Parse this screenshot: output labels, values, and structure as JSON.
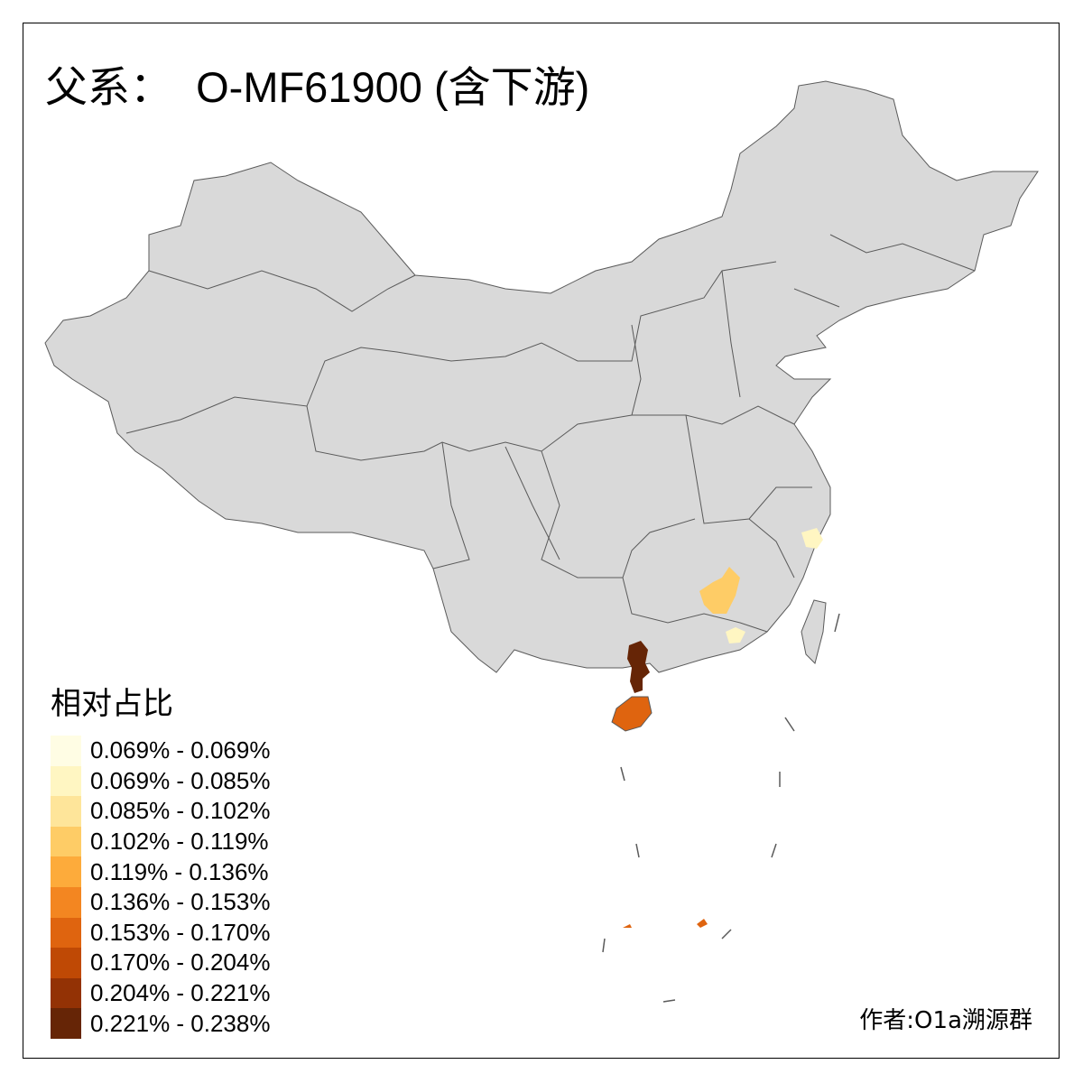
{
  "title": "父系：  O-MF61900 (含下游)",
  "legend": {
    "title": "相对占比",
    "items": [
      {
        "label": "0.069% - 0.069%",
        "color": "#FFFDE4"
      },
      {
        "label": "0.069% - 0.085%",
        "color": "#FFF6C2"
      },
      {
        "label": "0.085% - 0.102%",
        "color": "#FEE59A"
      },
      {
        "label": "0.102% - 0.119%",
        "color": "#FECC66"
      },
      {
        "label": "0.119% - 0.136%",
        "color": "#FDAB3B"
      },
      {
        "label": "0.136% - 0.153%",
        "color": "#F38621"
      },
      {
        "label": "0.153% - 0.170%",
        "color": "#DF640F"
      },
      {
        "label": "0.170% - 0.204%",
        "color": "#BF4905"
      },
      {
        "label": "0.204% - 0.221%",
        "color": "#933205"
      },
      {
        "label": "0.221% - 0.238%",
        "color": "#662506"
      }
    ]
  },
  "map": {
    "base_color": "#D9D9D9",
    "border_color": "#5A5A5A",
    "highlighted_regions": [
      {
        "region": "Zhejiang (south)",
        "color": "#FFF6C2"
      },
      {
        "region": "Jiangxi (south-west)",
        "color": "#FECC66"
      },
      {
        "region": "Guangdong (east)",
        "color": "#FFF6C2"
      },
      {
        "region": "Guangxi (south)",
        "color": "#662506"
      },
      {
        "region": "Hainan",
        "color": "#DF640F"
      },
      {
        "region": "South China Sea island",
        "color": "#DF640F"
      }
    ]
  },
  "credit": "作者:O1a溯源群"
}
